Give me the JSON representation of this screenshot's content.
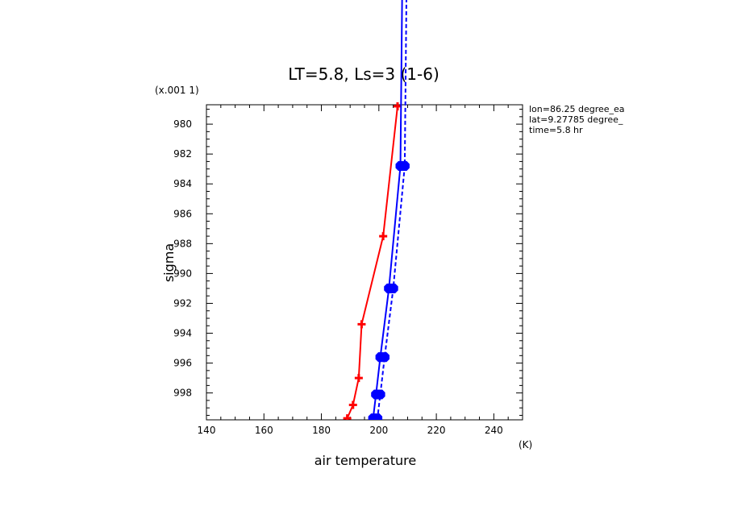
{
  "chart_data": {
    "type": "line",
    "title": "LT=5.8, Ls=3 (1-6)",
    "xlabel": "air temperature",
    "xunit": "(K)",
    "ylabel": "sigma",
    "yscale_note": "(x.001 1)",
    "xlim": [
      140,
      250
    ],
    "ylim": [
      999.8,
      978.7
    ],
    "y_inverted": true,
    "xticks": [
      140,
      160,
      180,
      200,
      220,
      240
    ],
    "yticks": [
      980,
      982,
      984,
      986,
      988,
      990,
      992,
      994,
      996,
      998
    ],
    "annotations": [
      "lon=86.25 degree_ea",
      "lat=9.27785 degree_",
      "time=5.8 hr"
    ],
    "grid": false,
    "series": [
      {
        "color": "#ff0000",
        "line": "solid",
        "marker": "plus",
        "points": [
          [
            206.5,
            978.8
          ],
          [
            201.5,
            987.5
          ],
          [
            194.0,
            993.4
          ],
          [
            193.0,
            997.0
          ],
          [
            191.0,
            998.8
          ],
          [
            189.0,
            999.7
          ]
        ]
      },
      {
        "color": "#0000ff",
        "line": "solid",
        "marker": "octagon",
        "points": [
          [
            208.5,
            963.8
          ],
          [
            207.5,
            982.8
          ],
          [
            203.5,
            991.0
          ],
          [
            200.5,
            995.6
          ],
          [
            199.0,
            998.1
          ],
          [
            198.0,
            999.7
          ]
        ]
      },
      {
        "color": "#0000ff",
        "line": "dashed",
        "marker": "octagon",
        "points": [
          [
            210.0,
            963.8
          ],
          [
            209.0,
            982.8
          ],
          [
            205.0,
            991.0
          ],
          [
            202.0,
            995.6
          ],
          [
            200.5,
            998.1
          ],
          [
            199.5,
            999.7
          ]
        ]
      }
    ]
  }
}
